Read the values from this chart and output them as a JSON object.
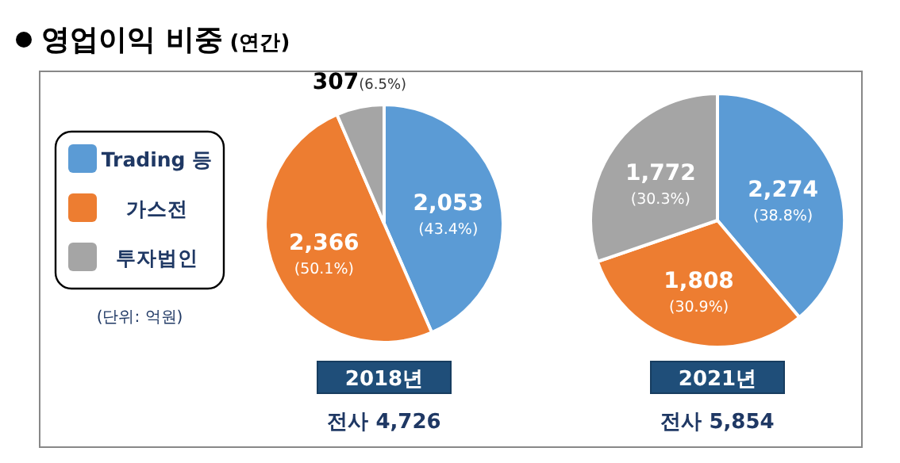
{
  "chart_data": [
    {
      "type": "pie",
      "title": "영업이익 비중 (연간)",
      "subtitle": "2018년",
      "categories": [
        "Trading 등",
        "가스전",
        "투자법인"
      ],
      "values": [
        2053,
        2366,
        307
      ],
      "colors": [
        "#5b9bd5",
        "#ed7d31",
        "#a5a5a5"
      ],
      "value_labels": [
        "2,053 (43.4%)",
        "2,366 (50.1%)",
        "307(6.5%)"
      ],
      "legend": "left",
      "annotations": [
        "(단위: 억원)",
        "전사 4,726"
      ]
    },
    {
      "type": "pie",
      "subtitle": "2021년",
      "values": [
        2274,
        1808,
        1772
      ],
      "colors": [
        "#5b9bd5",
        "#ed7d31",
        "#a5a5a5"
      ],
      "value_labels": [
        "2,274 (38.8%)",
        "1,808 (30.9%)",
        "1,772 (30.3%)"
      ],
      "annotations": [
        "전사 5,854"
      ]
    }
  ]
}
